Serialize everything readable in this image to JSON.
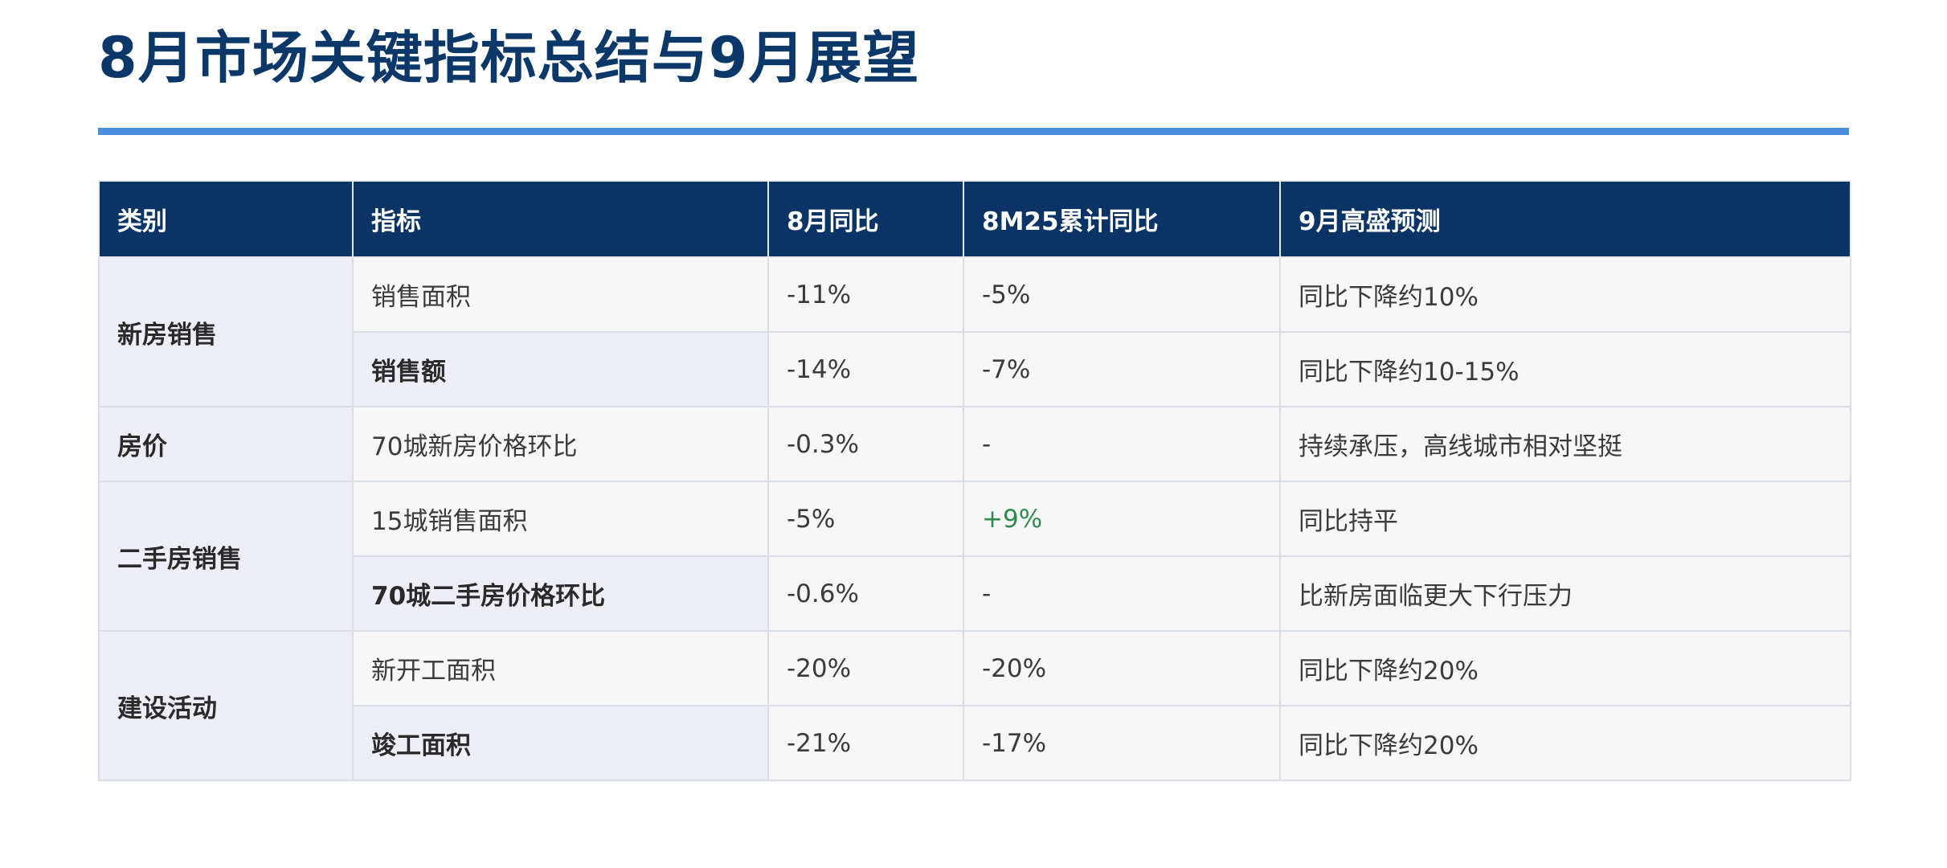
{
  "title": "8月市场关键指标总结与9月展望",
  "table": {
    "headers": [
      "类别",
      "指标",
      "8月同比",
      "8M25累计同比",
      "9月高盛预测"
    ],
    "groups": [
      {
        "category": "新房销售",
        "rows": [
          {
            "indicator": "销售面积",
            "aug_yoy": "-11%",
            "ytd_yoy": "-5%",
            "sep_forecast": "同比下降约10%"
          },
          {
            "indicator": "销售额",
            "aug_yoy": "-14%",
            "ytd_yoy": "-7%",
            "sep_forecast": "同比下降约10-15%"
          }
        ]
      },
      {
        "category": "房价",
        "rows": [
          {
            "indicator": "70城新房价格环比",
            "aug_yoy": "-0.3%",
            "ytd_yoy": "-",
            "sep_forecast": "持续承压，高线城市相对坚挺"
          }
        ]
      },
      {
        "category": "二手房销售",
        "rows": [
          {
            "indicator": "15城销售面积",
            "aug_yoy": "-5%",
            "ytd_yoy": "+9%",
            "sep_forecast": "同比持平"
          },
          {
            "indicator": "70城二手房价格环比",
            "aug_yoy": "-0.6%",
            "ytd_yoy": "-",
            "sep_forecast": "比新房面临更大下行压力"
          }
        ]
      },
      {
        "category": "建设活动",
        "rows": [
          {
            "indicator": "新开工面积",
            "aug_yoy": "-20%",
            "ytd_yoy": "-20%",
            "sep_forecast": "同比下降约20%"
          },
          {
            "indicator": "竣工面积",
            "aug_yoy": "-21%",
            "ytd_yoy": "-17%",
            "sep_forecast": "同比下降约20%"
          }
        ]
      }
    ]
  },
  "colors": {
    "title": "#0b3868",
    "rule": "#4a8fdb",
    "header_bg": "#0b3466",
    "category_bg": "#eeeef9",
    "positive": "#2e8b4e"
  }
}
